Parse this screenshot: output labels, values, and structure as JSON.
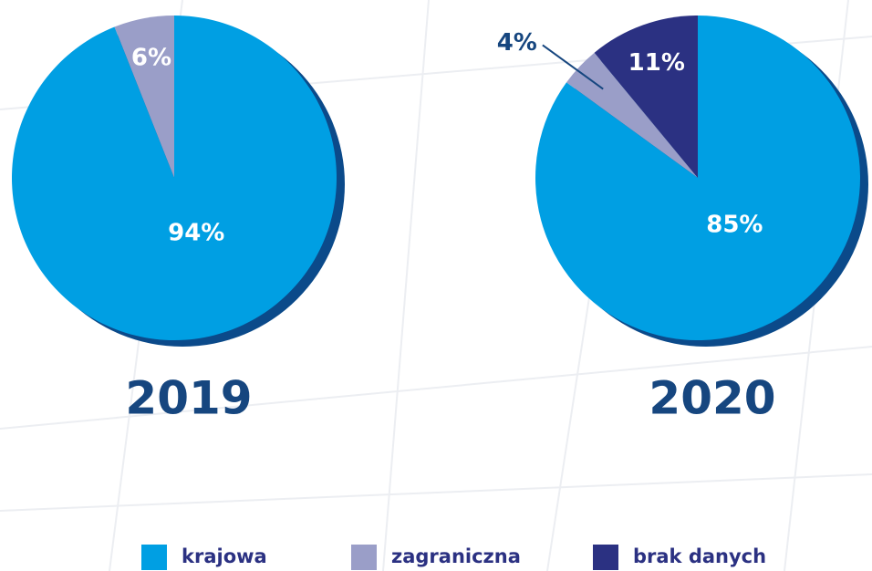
{
  "chart_data": [
    {
      "type": "pie",
      "title": "2019",
      "categories": [
        "krajowa",
        "zagraniczna"
      ],
      "values": [
        94,
        6
      ],
      "value_labels": [
        "94%",
        "6%"
      ],
      "colors": [
        "#009fe3",
        "#9a9ec8"
      ]
    },
    {
      "type": "pie",
      "title": "2020",
      "categories": [
        "krajowa",
        "zagraniczna",
        "brak danych"
      ],
      "values": [
        85,
        4,
        11
      ],
      "value_labels": [
        "85%",
        "4%",
        "11%"
      ],
      "colors": [
        "#009fe3",
        "#9a9ec8",
        "#2b3182"
      ]
    }
  ]
}
